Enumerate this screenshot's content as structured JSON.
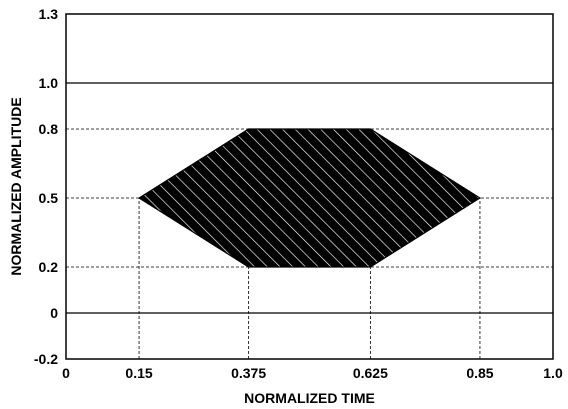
{
  "chart_data": {
    "type": "area",
    "title": "",
    "xlabel": "NORMALIZED TIME",
    "ylabel": "NORMALIZED AMPLITUDE",
    "xlim": [
      0,
      1.0
    ],
    "ylim": [
      -0.2,
      1.3
    ],
    "x_ticks": [
      {
        "value": 0,
        "label": "0"
      },
      {
        "value": 0.15,
        "label": "0.15"
      },
      {
        "value": 0.375,
        "label": "0.375"
      },
      {
        "value": 0.625,
        "label": "0.625"
      },
      {
        "value": 0.85,
        "label": "0.85"
      },
      {
        "value": 1.0,
        "label": "1.0"
      }
    ],
    "y_ticks": [
      {
        "value": -0.2,
        "label": "-0.2"
      },
      {
        "value": 0,
        "label": "0"
      },
      {
        "value": 0.2,
        "label": "0.2"
      },
      {
        "value": 0.5,
        "label": "0.5"
      },
      {
        "value": 0.8,
        "label": "0.8"
      },
      {
        "value": 1.0,
        "label": "1.0"
      },
      {
        "value": 1.3,
        "label": "1.3"
      }
    ],
    "solid_gridlines_y": [
      0,
      1.0
    ],
    "dashed_gridlines_y": [
      0.2,
      0.5,
      0.8
    ],
    "dashed_verticals": [
      {
        "x": 0.15,
        "y_to": 0.5
      },
      {
        "x": 0.375,
        "y_to": 0.8
      },
      {
        "x": 0.625,
        "y_to": 0.8
      },
      {
        "x": 0.85,
        "y_to": 0.5
      }
    ],
    "region": {
      "fill": "hatched",
      "points": [
        {
          "x": 0.15,
          "y": 0.5
        },
        {
          "x": 0.375,
          "y": 0.8
        },
        {
          "x": 0.625,
          "y": 0.8
        },
        {
          "x": 0.85,
          "y": 0.5
        },
        {
          "x": 0.625,
          "y": 0.2
        },
        {
          "x": 0.375,
          "y": 0.2
        }
      ]
    },
    "grid": true
  },
  "colors": {
    "ink": "#000000",
    "background": "#ffffff",
    "hatch": "#ffffff"
  }
}
